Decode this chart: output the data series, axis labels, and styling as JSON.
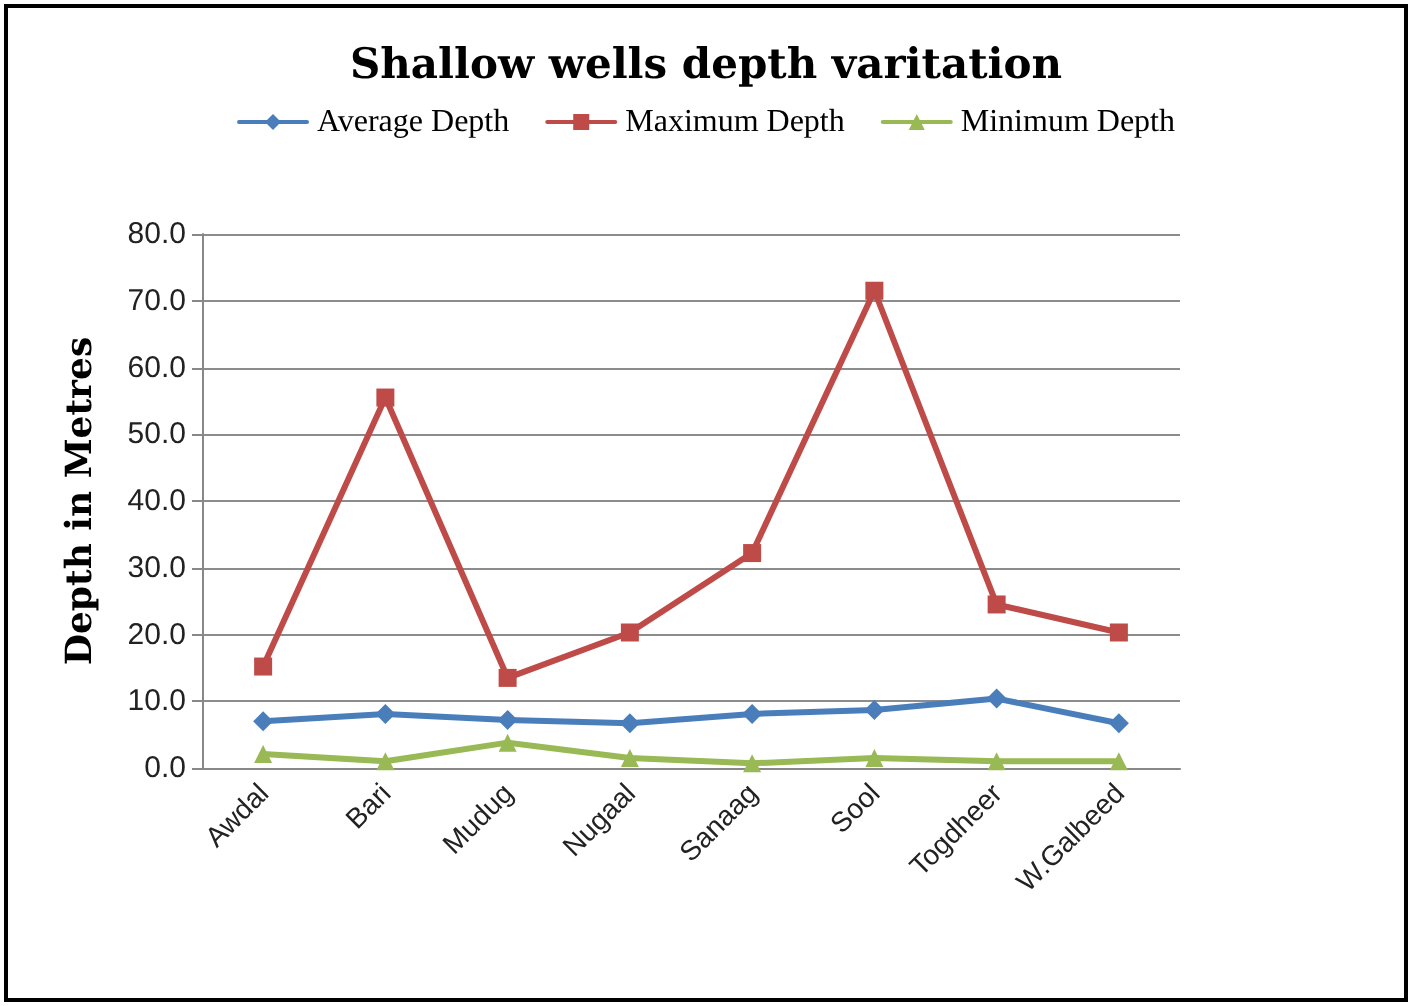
{
  "chart_data": {
    "type": "line",
    "title": "Shallow wells depth varitation",
    "ylabel": "Depth in Metres",
    "categories": [
      "Awdal",
      "Bari",
      "Mudug",
      "Nugaal",
      "Sanaag",
      "Sool",
      "Togdheer",
      "W.Galbeed"
    ],
    "series": [
      {
        "name": "Average Depth",
        "color": "#4a7ebb",
        "marker": "diamond",
        "values": [
          7.0,
          8.1,
          7.2,
          6.7,
          8.1,
          8.7,
          10.4,
          6.7
        ]
      },
      {
        "name": "Maximum Depth",
        "color": "#be4b48",
        "marker": "square",
        "values": [
          15.2,
          55.5,
          13.5,
          20.3,
          32.2,
          71.5,
          24.5,
          20.3
        ]
      },
      {
        "name": "Minimum Depth",
        "color": "#98b954",
        "marker": "triangle",
        "values": [
          2.1,
          1.0,
          3.8,
          1.5,
          0.7,
          1.5,
          1.0,
          1.0
        ]
      }
    ],
    "ylim": [
      0,
      80
    ],
    "yticks": [
      {
        "value": 0,
        "label": "0.0"
      },
      {
        "value": 10,
        "label": "10.0"
      },
      {
        "value": 20,
        "label": "20.0"
      },
      {
        "value": 30,
        "label": "30.0"
      },
      {
        "value": 40,
        "label": "40.0"
      },
      {
        "value": 50,
        "label": "50.0"
      },
      {
        "value": 60,
        "label": "60.0"
      },
      {
        "value": 70,
        "label": "70.0"
      },
      {
        "value": 80,
        "label": "80.0"
      }
    ],
    "grid": "y",
    "legend": "top"
  }
}
